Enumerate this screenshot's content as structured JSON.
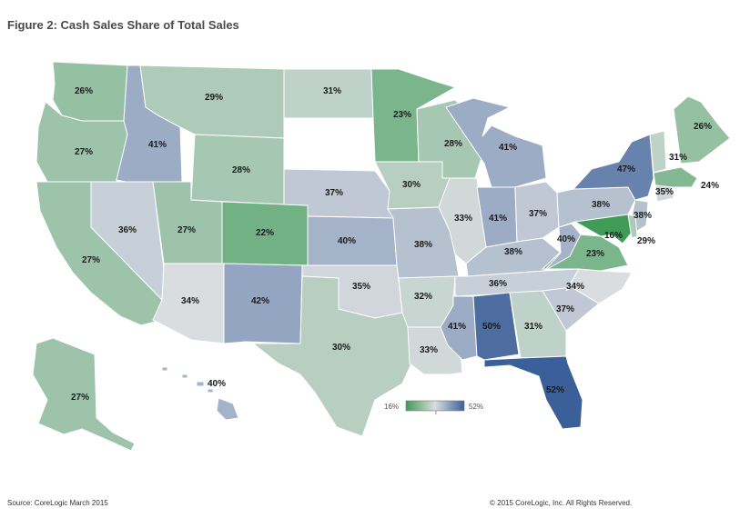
{
  "title": "Figure 2: Cash Sales Share of Total Sales",
  "source": "Source: CoreLogic March 2015",
  "copyright": "© 2015 CoreLogic, Inc. All Rights Reserved.",
  "legend": {
    "min_label": "16%",
    "max_label": "52%",
    "min": 16,
    "max": 52
  },
  "colors": {
    "low": "#3f9b55",
    "mid": "#d9dde0",
    "high": "#3b5f99"
  },
  "states": [
    {
      "id": "WA",
      "value": "26%"
    },
    {
      "id": "OR",
      "value": "27%"
    },
    {
      "id": "CA",
      "value": "27%"
    },
    {
      "id": "ID",
      "value": "41%"
    },
    {
      "id": "NV",
      "value": "36%"
    },
    {
      "id": "MT",
      "value": "29%"
    },
    {
      "id": "WY",
      "value": "28%"
    },
    {
      "id": "UT",
      "value": "27%"
    },
    {
      "id": "AZ",
      "value": "34%"
    },
    {
      "id": "CO",
      "value": "22%"
    },
    {
      "id": "NM",
      "value": "42%"
    },
    {
      "id": "ND",
      "value": "31%"
    },
    {
      "id": "SD",
      "value": ""
    },
    {
      "id": "NE",
      "value": "37%"
    },
    {
      "id": "KS",
      "value": "40%"
    },
    {
      "id": "OK",
      "value": "35%"
    },
    {
      "id": "TX",
      "value": "30%"
    },
    {
      "id": "MN",
      "value": "23%"
    },
    {
      "id": "IA",
      "value": "30%"
    },
    {
      "id": "MO",
      "value": "38%"
    },
    {
      "id": "AR",
      "value": "32%"
    },
    {
      "id": "LA",
      "value": "33%"
    },
    {
      "id": "WI",
      "value": "28%"
    },
    {
      "id": "IL",
      "value": "33%"
    },
    {
      "id": "MI",
      "value": "41%"
    },
    {
      "id": "IN",
      "value": "41%"
    },
    {
      "id": "OH",
      "value": "37%"
    },
    {
      "id": "KY",
      "value": "38%"
    },
    {
      "id": "TN",
      "value": "36%"
    },
    {
      "id": "MS",
      "value": "41%"
    },
    {
      "id": "AL",
      "value": "50%"
    },
    {
      "id": "GA",
      "value": "31%"
    },
    {
      "id": "FL",
      "value": "52%"
    },
    {
      "id": "SC",
      "value": "37%"
    },
    {
      "id": "NC",
      "value": "34%"
    },
    {
      "id": "VA",
      "value": "23%"
    },
    {
      "id": "WV",
      "value": "40%"
    },
    {
      "id": "PA",
      "value": "38%"
    },
    {
      "id": "NY",
      "value": "47%"
    },
    {
      "id": "NJ",
      "value": "38%"
    },
    {
      "id": "MD",
      "value": "16%"
    },
    {
      "id": "DE",
      "value": "29%"
    },
    {
      "id": "VT",
      "value": "31%"
    },
    {
      "id": "ME",
      "value": "26%"
    },
    {
      "id": "NH",
      "value": ""
    },
    {
      "id": "MA",
      "value": "24%"
    },
    {
      "id": "CT",
      "value": "35%"
    },
    {
      "id": "RI",
      "value": ""
    },
    {
      "id": "AK",
      "value": "27%"
    },
    {
      "id": "HI",
      "value": "40%"
    }
  ]
}
